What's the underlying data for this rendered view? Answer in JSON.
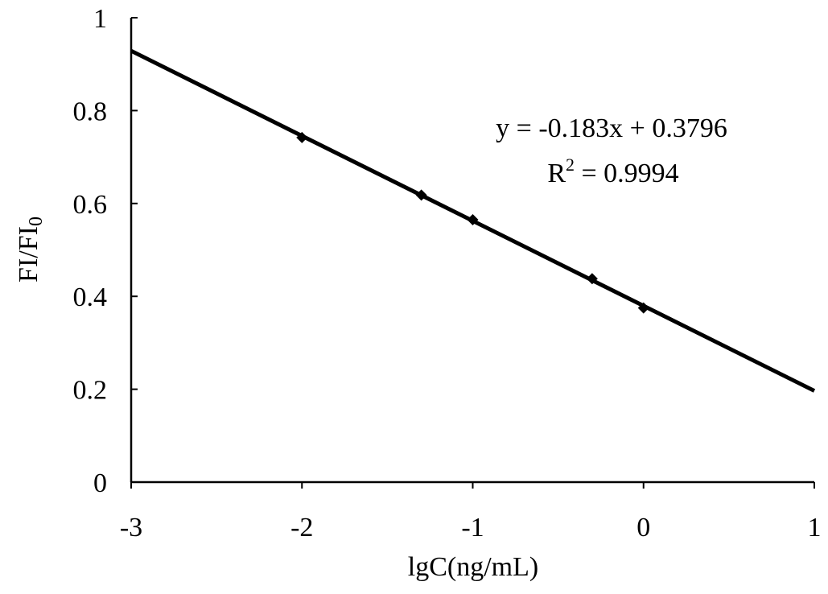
{
  "chart_data": {
    "type": "scatter",
    "xlabel": "lgC(ng/mL)",
    "ylabel_main": "FI/FI",
    "ylabel_sub": "0",
    "xlim": [
      -3,
      1
    ],
    "ylim": [
      0,
      1
    ],
    "xticks": [
      -3,
      -2,
      -1,
      0,
      1
    ],
    "xtick_labels": [
      "-3",
      "-2",
      "-1",
      "0",
      "1"
    ],
    "yticks": [
      0,
      0.2,
      0.4,
      0.6,
      0.8,
      1
    ],
    "ytick_labels": [
      "0",
      "0.2",
      "0.4",
      "0.6",
      "0.8",
      "1"
    ],
    "grid": false,
    "series": [
      {
        "marker": "diamond",
        "x": [
          -2,
          -1.301,
          -1,
          -0.301,
          0
        ],
        "y": [
          0.742,
          0.618,
          0.565,
          0.438,
          0.375
        ]
      }
    ],
    "trendline": {
      "slope": -0.183,
      "intercept": 0.3796,
      "x_range": [
        -3,
        1
      ]
    },
    "annotation": {
      "equation": "y = -0.183x + 0.3796",
      "r2_prefix": "R",
      "r2_sup": "2",
      "r2_value": " = 0.9994"
    },
    "colors": {
      "line": "#000000",
      "marker": "#000000"
    }
  }
}
